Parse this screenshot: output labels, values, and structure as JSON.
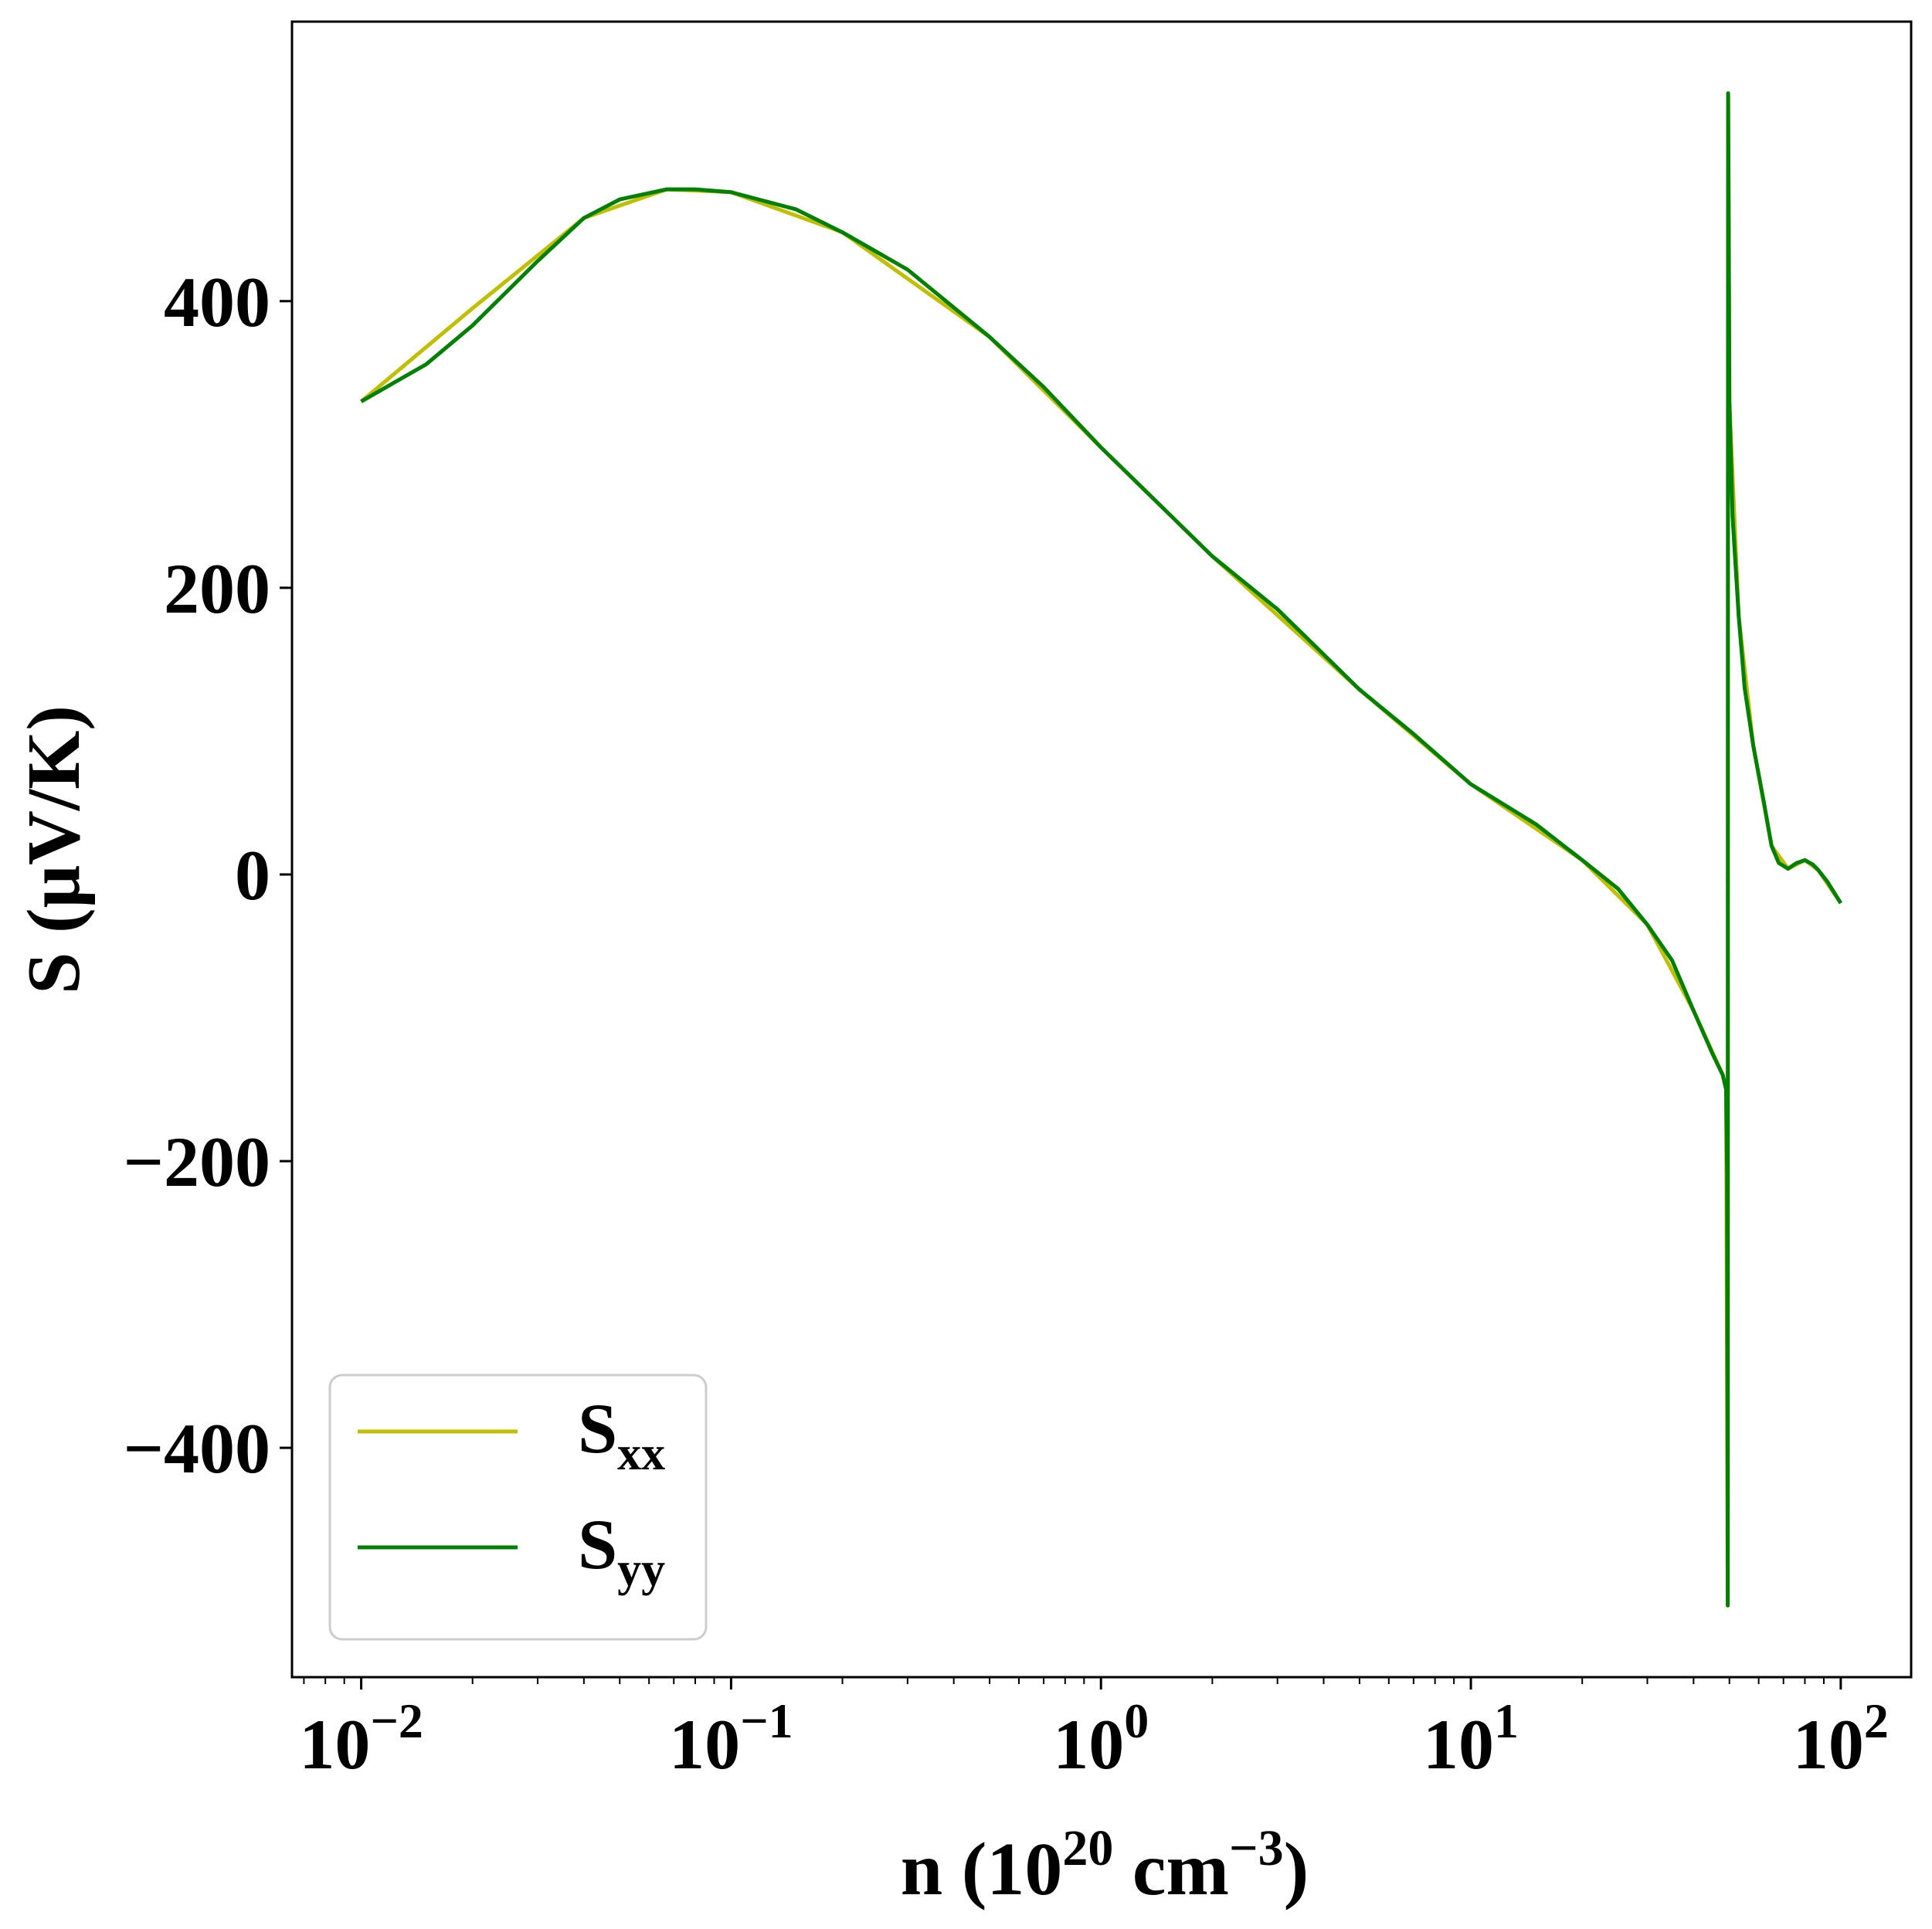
{
  "chart_data": {
    "type": "line",
    "title": "",
    "xlabel": {
      "main": "n (10",
      "exp1": "20",
      "mid": " cm",
      "exp2": "−3",
      "end": ")"
    },
    "ylabel": "S (μV/K)",
    "xscale": "log",
    "xlim": [
      0.0065,
      155
    ],
    "ylim": [
      -560,
      595
    ],
    "grid": false,
    "legend_position": "lower-left",
    "xticks": [
      {
        "value": 0.01,
        "base": "10",
        "exp": "−2"
      },
      {
        "value": 0.1,
        "base": "10",
        "exp": "−1"
      },
      {
        "value": 1,
        "base": "10",
        "exp": "0"
      },
      {
        "value": 10,
        "base": "10",
        "exp": "1"
      },
      {
        "value": 100,
        "base": "10",
        "exp": "2"
      }
    ],
    "yticks": [
      {
        "value": -400,
        "label": "−400"
      },
      {
        "value": -200,
        "label": "−200"
      },
      {
        "value": 0,
        "label": "0"
      },
      {
        "value": 200,
        "label": "200"
      },
      {
        "value": 400,
        "label": "400"
      }
    ],
    "series": [
      {
        "name": "S",
        "subscript": "xx",
        "color": "#bfbf00",
        "points": [
          [
            0.01,
            330
          ],
          [
            0.02,
            395
          ],
          [
            0.04,
            458
          ],
          [
            0.067,
            478
          ],
          [
            0.1,
            476
          ],
          [
            0.2,
            448
          ],
          [
            0.5,
            375
          ],
          [
            1,
            298
          ],
          [
            2,
            222
          ],
          [
            5,
            129
          ],
          [
            10,
            63
          ],
          [
            20,
            10
          ],
          [
            30,
            -35
          ],
          [
            40,
            -95
          ],
          [
            48,
            -140
          ],
          [
            49,
            -150
          ],
          [
            49.5,
            -510
          ],
          [
            49.6,
            545
          ],
          [
            50,
            330
          ],
          [
            53,
            180
          ],
          [
            58,
            90
          ],
          [
            65,
            20
          ],
          [
            72,
            4
          ],
          [
            80,
            10
          ],
          [
            87,
            3
          ],
          [
            100,
            -20
          ]
        ]
      },
      {
        "name": "S",
        "subscript": "yy",
        "color": "#008000",
        "points": [
          [
            0.01,
            330
          ],
          [
            0.015,
            356
          ],
          [
            0.02,
            383
          ],
          [
            0.03,
            428
          ],
          [
            0.04,
            458
          ],
          [
            0.05,
            471
          ],
          [
            0.067,
            478
          ],
          [
            0.08,
            478
          ],
          [
            0.1,
            476
          ],
          [
            0.15,
            464
          ],
          [
            0.2,
            448
          ],
          [
            0.3,
            422
          ],
          [
            0.5,
            375
          ],
          [
            0.7,
            340
          ],
          [
            1,
            298
          ],
          [
            2,
            222
          ],
          [
            3,
            185
          ],
          [
            5,
            129
          ],
          [
            7,
            98
          ],
          [
            10,
            63
          ],
          [
            15,
            35
          ],
          [
            20,
            10
          ],
          [
            25,
            -10
          ],
          [
            30,
            -35
          ],
          [
            35,
            -60
          ],
          [
            40,
            -95
          ],
          [
            45,
            -125
          ],
          [
            48,
            -140
          ],
          [
            49,
            -150
          ],
          [
            49.3,
            -210
          ],
          [
            49.5,
            -510
          ],
          [
            49.55,
            200
          ],
          [
            49.6,
            545
          ],
          [
            49.8,
            450
          ],
          [
            50,
            330
          ],
          [
            51,
            250
          ],
          [
            53,
            180
          ],
          [
            55,
            130
          ],
          [
            58,
            90
          ],
          [
            62,
            50
          ],
          [
            65,
            20
          ],
          [
            68,
            8
          ],
          [
            72,
            4
          ],
          [
            76,
            8
          ],
          [
            80,
            10
          ],
          [
            84,
            7
          ],
          [
            87,
            3
          ],
          [
            92,
            -5
          ],
          [
            100,
            -20
          ]
        ]
      }
    ]
  }
}
